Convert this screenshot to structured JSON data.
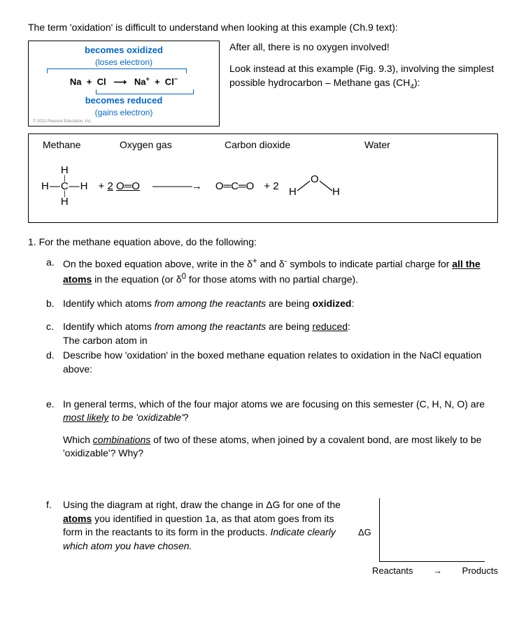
{
  "intro": "The term 'oxidation' is difficult to understand when looking at this example (Ch.9 text):",
  "nacl": {
    "top_label": "becomes oxidized",
    "top_sub": "(loses electron)",
    "equation_html": "Na&nbsp;&nbsp;+&nbsp;&nbsp;Cl&nbsp;&nbsp;&nbsp;⟶&nbsp;&nbsp;&nbsp;Na<sup>+</sup>&nbsp;&nbsp;+&nbsp;&nbsp;Cl<sup>−</sup>",
    "bot_label": "becomes reduced",
    "bot_sub": "(gains electron)",
    "credit": "© 2011 Pearson Education, Inc."
  },
  "right": {
    "p1": "After all, there is no oxygen involved!",
    "p2_html": "Look instead at this example (Fig. 9.3), involving the simplest possible hydrocarbon – Methane gas (CH<sub>4</sub>):"
  },
  "rxn": {
    "labels": [
      "Methane",
      "Oxygen gas",
      "Carbon dioxide",
      "Water"
    ],
    "methane": {
      "top": "H",
      "mid": "H—C—H",
      "bot": "H"
    },
    "o2_coef": "+ ",
    "o2_coef_u": "2",
    "o2_coef2": " ",
    "o2": "O═O",
    "arrow": "————→",
    "co2": "O═C═O",
    "h2o_coef": "+   2"
  },
  "q1": "1. For the methane equation above, do the following:",
  "items": {
    "a": "On the boxed equation above, write in the δ<sup>+</sup> and δ<sup>-</sup> symbols to indicate partial charge for <b><u>all the atoms</u></b> in the equation (or δ<sup>0</sup> for those atoms with no partial charge).",
    "b": "Identify which atoms <i>from among the reactants</i> are being <b>oxidized</b>:",
    "c": "Identify which atoms <i>from among the reactants</i> are being <u>reduced</u>:",
    "c_ans": "The carbon atom in",
    "d": "Describe how 'oxidation' in the boxed methane equation relates to oxidation in the NaCl equation above:",
    "e1": "In general terms, which of the four major atoms we are focusing on this semester (C, H, N, O) are <i><u>most likely</u> to be 'oxidizable'</i>?",
    "e2": "Which <i><u>combinations</u></i> of two of these atoms, when joined by a covalent bond, are most likely to be 'oxidizable'? Why?",
    "f": "Using the diagram at right, draw the change in ΔG for one of the <b><u>atoms</u></b> you identified in question 1a, as that atom goes from its form in the reactants to its form in the products. <i>Indicate clearly which atom you have chosen.</i>"
  },
  "diagram": {
    "y": "ΔG",
    "x1": "Reactants",
    "arrow": "→",
    "x2": "Products"
  }
}
